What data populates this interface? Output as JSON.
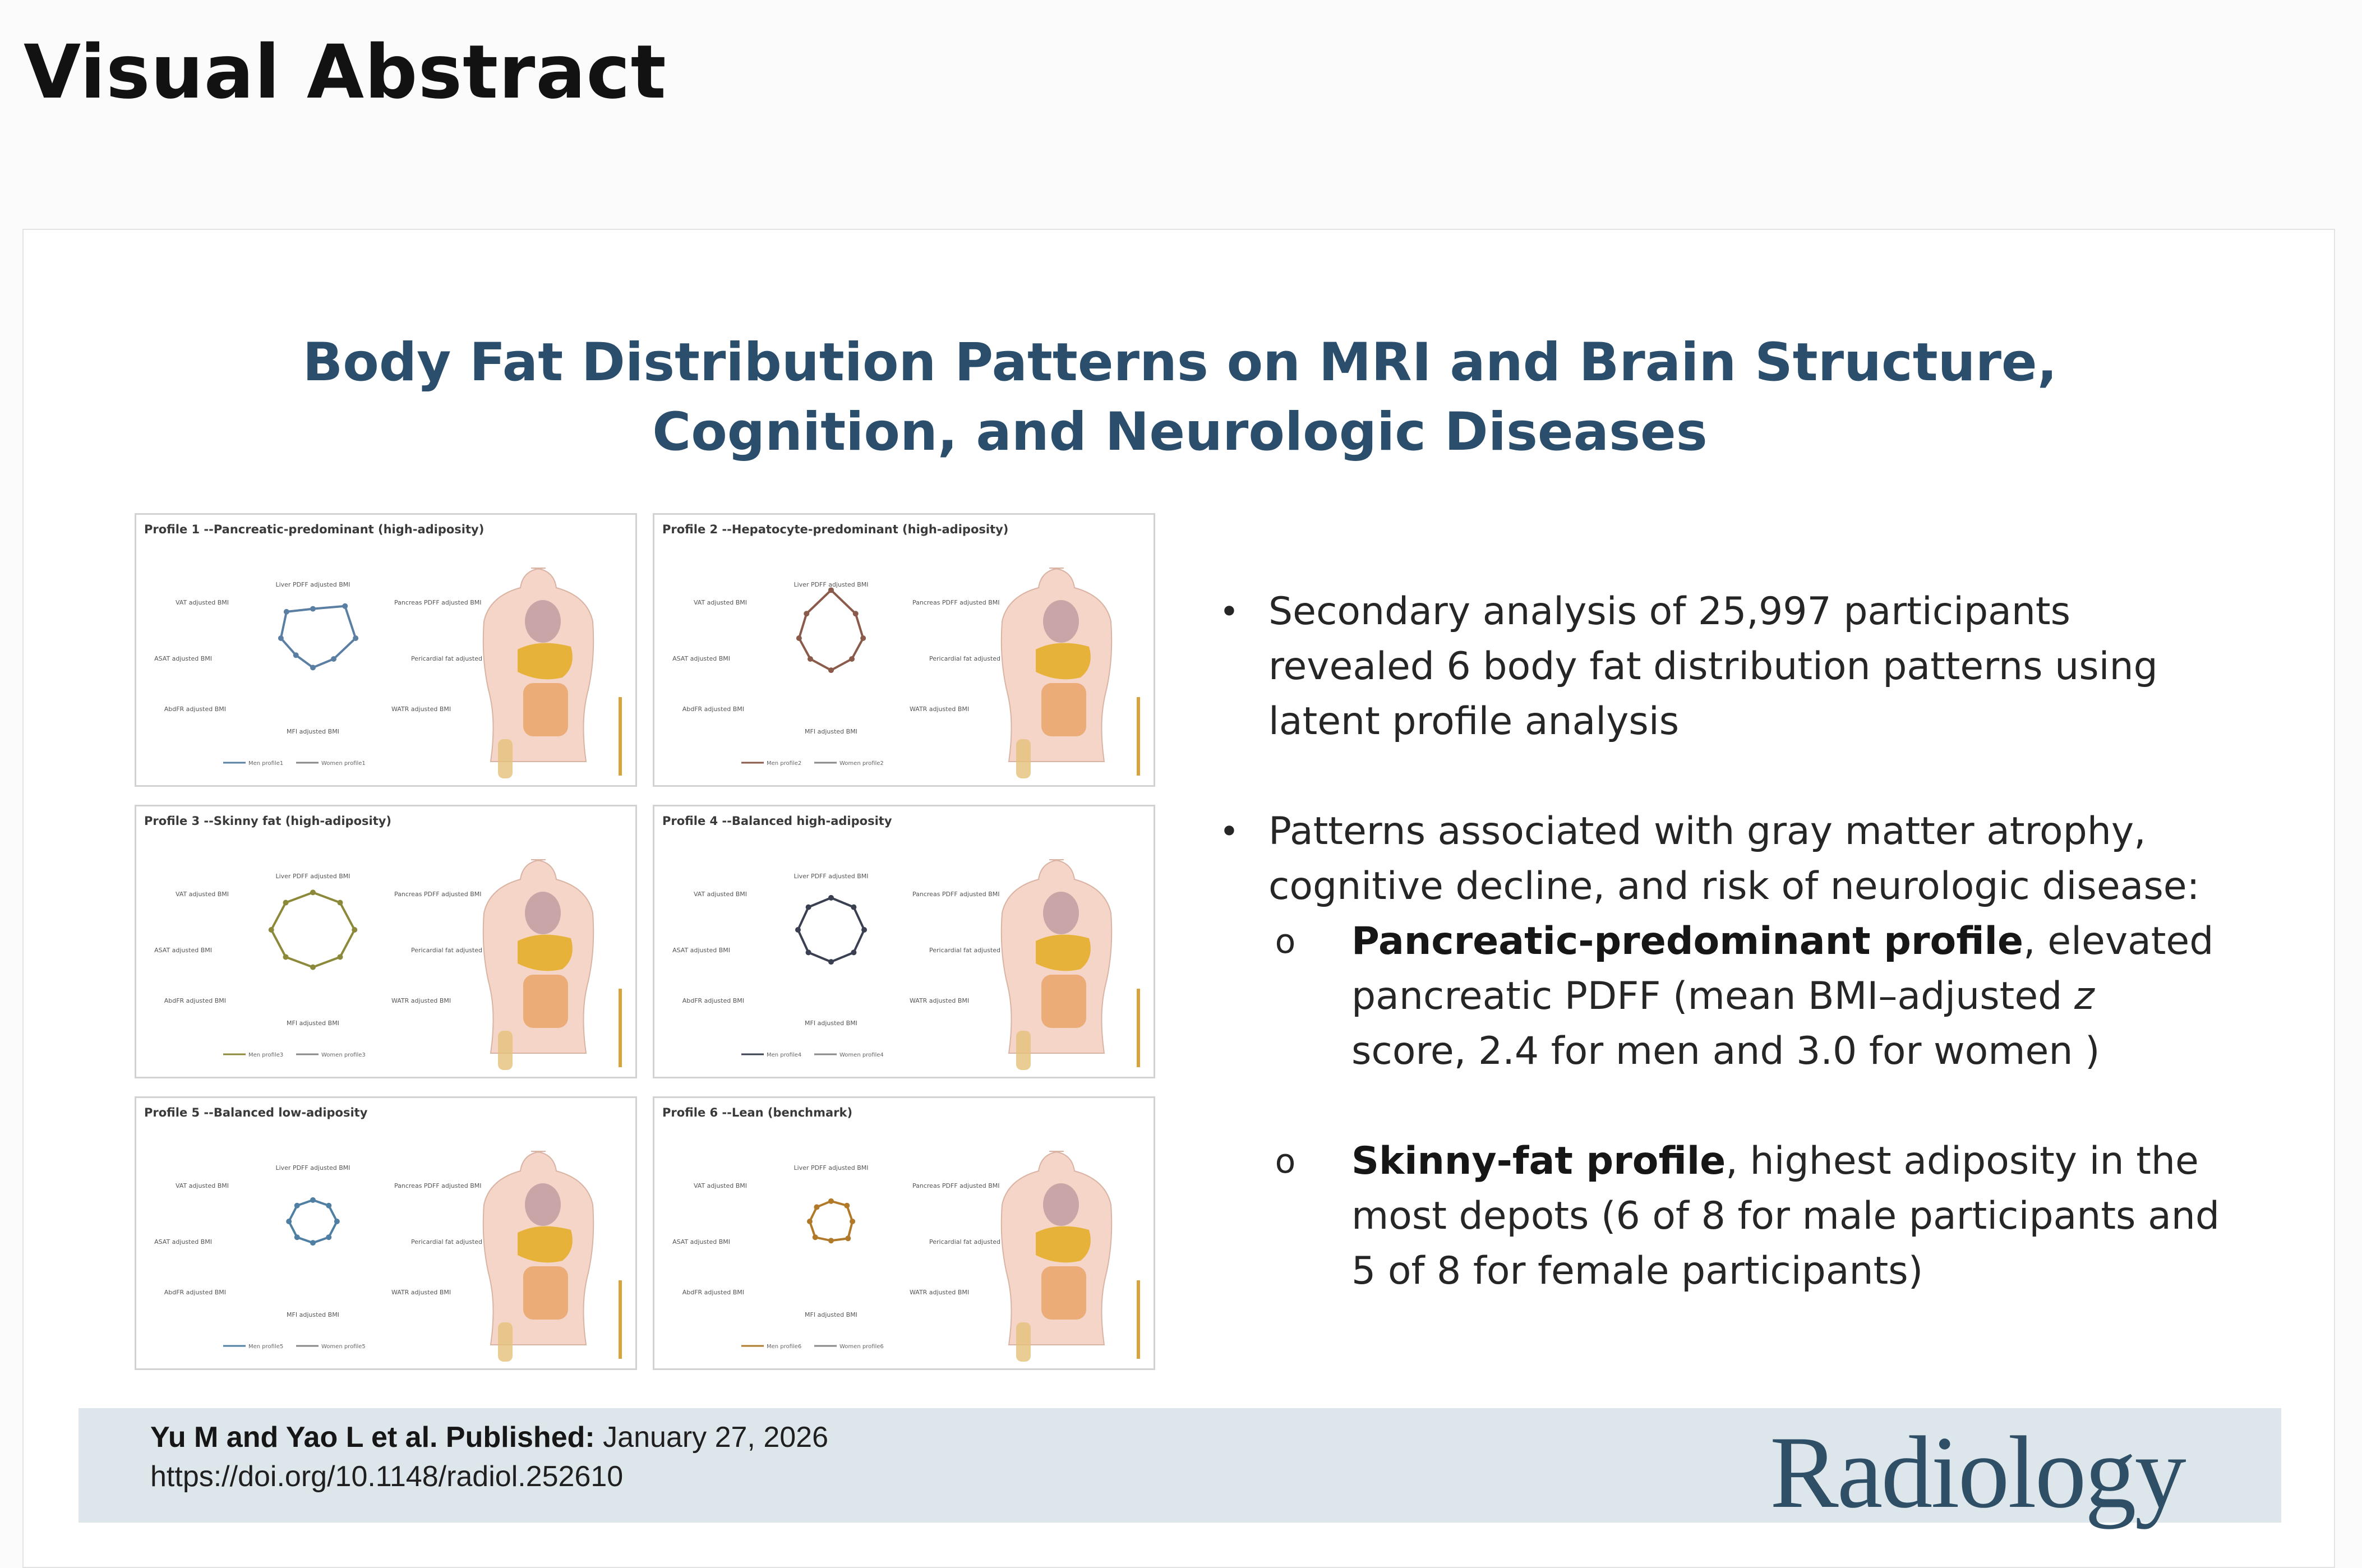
{
  "header": {
    "title": "Visual Abstract"
  },
  "abstract": {
    "title_line1": "Body Fat Distribution Patterns on MRI and Brain Structure,",
    "title_line2": "Cognition, and Neurologic Diseases"
  },
  "profiles": [
    {
      "title": "Profile 1 --Pancreatic-predominant (high-adiposity)",
      "color": "#5a7fa3",
      "radar": [
        0.55,
        0.85,
        0.8,
        0.55,
        0.55,
        0.45,
        0.6,
        0.7
      ],
      "axis_labels": [
        "Liver PDFF adjusted BMI",
        "Pancreas PDFF adjusted BMI",
        "Pericardial fat adjusted BMI",
        "WATR adjusted BMI",
        "MFI adjusted BMI",
        "AbdFR adjusted BMI",
        "ASAT adjusted BMI",
        "VAT adjusted BMI"
      ],
      "legend": [
        "Men profile1",
        "Women profile1"
      ]
    },
    {
      "title": "Profile 2 --Hepatocyte-predominant (high-adiposity)",
      "color": "#8a5a4a",
      "radar": [
        0.9,
        0.65,
        0.6,
        0.55,
        0.6,
        0.55,
        0.6,
        0.65
      ],
      "axis_labels": [
        "Liver PDFF adjusted BMI",
        "Pancreas PDFF adjusted BMI",
        "Pericardial fat adjusted BMI",
        "WATR adjusted BMI",
        "MFI adjusted BMI",
        "AbdFR adjusted BMI",
        "ASAT adjusted BMI",
        "VAT adjusted BMI"
      ],
      "legend": [
        "Men profile2",
        "Women profile2"
      ]
    },
    {
      "title": "Profile 3 --Skinny fat (high-adiposity)",
      "color": "#8c8a3a",
      "radar": [
        0.7,
        0.72,
        0.78,
        0.72,
        0.7,
        0.72,
        0.78,
        0.72
      ],
      "axis_labels": [
        "Liver PDFF adjusted BMI",
        "Pancreas PDFF adjusted BMI",
        "Pericardial fat adjusted BMI",
        "WATR adjusted BMI",
        "MFI adjusted BMI",
        "AbdFR adjusted BMI",
        "ASAT adjusted BMI",
        "VAT adjusted BMI"
      ],
      "legend": [
        "Men profile3",
        "Women profile3"
      ]
    },
    {
      "title": "Profile 4 --Balanced high-adiposity",
      "color": "#3a3f52",
      "radar": [
        0.6,
        0.6,
        0.62,
        0.6,
        0.6,
        0.6,
        0.62,
        0.6
      ],
      "axis_labels": [
        "Liver PDFF adjusted BMI",
        "Pancreas PDFF adjusted BMI",
        "Pericardial fat adjusted BMI",
        "WATR adjusted BMI",
        "MFI adjusted BMI",
        "AbdFR adjusted BMI",
        "ASAT adjusted BMI",
        "VAT adjusted BMI"
      ],
      "legend": [
        "Men profile4",
        "Women profile4"
      ]
    },
    {
      "title": "Profile 5 --Balanced low-adiposity",
      "color": "#4f7fa3",
      "radar": [
        0.4,
        0.42,
        0.45,
        0.42,
        0.4,
        0.42,
        0.45,
        0.42
      ],
      "axis_labels": [
        "Liver PDFF adjusted BMI",
        "Pancreas PDFF adjusted BMI",
        "Pericardial fat adjusted BMI",
        "WATR adjusted BMI",
        "MFI adjusted BMI",
        "AbdFR adjusted BMI",
        "ASAT adjusted BMI",
        "VAT adjusted BMI"
      ],
      "legend": [
        "Men profile5",
        "Women profile5"
      ]
    },
    {
      "title": "Profile 6 --Lean (benchmark)",
      "color": "#b07a2a",
      "radar": [
        0.38,
        0.42,
        0.4,
        0.45,
        0.36,
        0.42,
        0.4,
        0.38
      ],
      "axis_labels": [
        "Liver PDFF adjusted BMI",
        "Pancreas PDFF adjusted BMI",
        "Pericardial fat adjusted BMI",
        "WATR adjusted BMI",
        "MFI adjusted BMI",
        "AbdFR adjusted BMI",
        "ASAT adjusted BMI",
        "VAT adjusted BMI"
      ],
      "legend": [
        "Men profile6",
        "Women profile6"
      ]
    }
  ],
  "findings": {
    "bullet1_line1": "Secondary analysis of 25,997 participants",
    "bullet1_line2": "revealed 6 body fat distribution patterns using",
    "bullet1_line3": "latent profile analysis",
    "bullet2_line1": "Patterns associated with gray matter atrophy,",
    "bullet2_line2": "cognitive decline, and risk of neurologic disease:",
    "sub1_bold": "Pancreatic-predominant profile",
    "sub1_rest": ", elevated",
    "sub1_line2a": "pancreatic PDFF (mean BMI–adjusted ",
    "sub1_line2z": "z",
    "sub1_line3": "score, 2.4 for men and 3.0 for women )",
    "sub2_bold": "Skinny-fat profile",
    "sub2_rest": ", highest adiposity in the",
    "sub2_line2": "most depots (6 of 8 for male participants and",
    "sub2_line3": "5 of 8 for female participants)",
    "bullet_glyph": "•",
    "sub_glyph": "o"
  },
  "footer": {
    "authors_bold": "Yu M and Yao L et al. Published:",
    "date": " January 27, 2026",
    "doi": "https://doi.org/10.1148/radiol.252610",
    "journal": "Radiology"
  },
  "colors": {
    "title_blue": "#2a4e6c",
    "footer_bg": "#dde6ea",
    "body_skin": "#f4d5c8",
    "organ_yellow": "#e6b23a"
  }
}
